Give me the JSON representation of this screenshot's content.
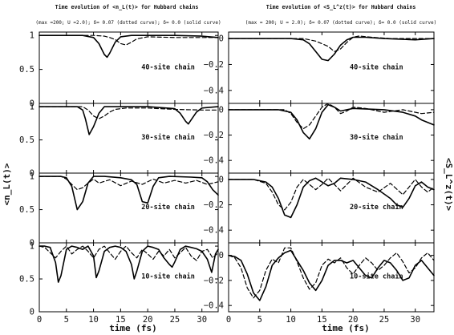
{
  "chart_data": [
    {
      "type": "line",
      "title": "Time evolution of <n_L(t)> for Hubbard chains",
      "subtitle": "(max =200; U =2.0); δ= 0.07 (dotted curve); δ= 0.0 (solid curve)",
      "ylabel": "<n_L(t)>",
      "xlabel": "time (fs)",
      "xlim": [
        0,
        33
      ],
      "x_ticks": [
        "0",
        "5",
        "10",
        "15",
        "20",
        "25",
        "30"
      ],
      "panels": [
        {
          "label": "40-site chain",
          "ylim": [
            0,
            1.05
          ],
          "y_ticks": [
            "0",
            "0.5",
            "1"
          ],
          "series": [
            {
              "style": "solid",
              "x": [
                0,
                8,
                10,
                11,
                12,
                12.5,
                13,
                14,
                15,
                17,
                20,
                25,
                30,
                33
              ],
              "y": [
                1,
                1,
                0.97,
                0.88,
                0.72,
                0.68,
                0.74,
                0.9,
                0.98,
                1,
                1,
                1,
                0.99,
                0.97
              ]
            },
            {
              "style": "dashed",
              "x": [
                0,
                10,
                12,
                13,
                14,
                15,
                16,
                17,
                18,
                20,
                25,
                30,
                33
              ],
              "y": [
                1,
                1,
                0.99,
                0.97,
                0.94,
                0.88,
                0.86,
                0.9,
                0.95,
                0.98,
                0.97,
                0.97,
                0.97
              ]
            }
          ]
        },
        {
          "label": "30-site chain",
          "ylim": [
            0,
            1.05
          ],
          "y_ticks": [
            "0",
            "0.5",
            "1"
          ],
          "series": [
            {
              "style": "solid",
              "x": [
                0,
                7,
                8,
                8.5,
                9.2,
                10,
                11,
                12,
                20,
                25,
                26,
                27,
                27.5,
                28,
                29,
                30,
                33
              ],
              "y": [
                1,
                1,
                0.95,
                0.82,
                0.58,
                0.7,
                0.9,
                1,
                1,
                0.97,
                0.9,
                0.78,
                0.74,
                0.8,
                0.92,
                0.98,
                1
              ]
            },
            {
              "style": "dashed",
              "x": [
                0,
                8,
                9,
                10,
                11,
                12,
                13,
                14,
                16,
                20,
                25,
                30,
                33
              ],
              "y": [
                1,
                1,
                0.95,
                0.86,
                0.82,
                0.86,
                0.92,
                0.96,
                0.98,
                0.98,
                0.96,
                0.95,
                0.95
              ]
            }
          ]
        },
        {
          "label": "20-site chain",
          "ylim": [
            0,
            1.05
          ],
          "y_ticks": [
            "0",
            "0.5",
            "1"
          ],
          "series": [
            {
              "style": "solid",
              "x": [
                0,
                4,
                5,
                6,
                7,
                8,
                9,
                10,
                12,
                15,
                17,
                18,
                19,
                20,
                21,
                22,
                24,
                28,
                30,
                31,
                32,
                33
              ],
              "y": [
                1,
                1,
                0.98,
                0.85,
                0.5,
                0.62,
                0.9,
                1,
                1,
                0.98,
                0.95,
                0.88,
                0.62,
                0.6,
                0.85,
                0.98,
                1,
                0.99,
                0.98,
                0.92,
                0.8,
                0.72
              ]
            },
            {
              "style": "dashed",
              "x": [
                0,
                4,
                5,
                6,
                7,
                8,
                9,
                10,
                11,
                13,
                15,
                17,
                19,
                21,
                23,
                25,
                27,
                29,
                31,
                33
              ],
              "y": [
                1,
                1,
                0.96,
                0.88,
                0.8,
                0.83,
                0.9,
                0.96,
                0.9,
                0.95,
                0.86,
                0.93,
                0.88,
                0.96,
                0.9,
                0.94,
                0.9,
                0.94,
                0.88,
                0.92
              ]
            }
          ]
        },
        {
          "label": "10-site chain",
          "ylim": [
            0,
            1.05
          ],
          "y_ticks": [
            "0",
            "0.5",
            "1"
          ],
          "series": [
            {
              "style": "solid",
              "x": [
                0,
                1,
                2,
                3,
                3.5,
                4,
                5,
                6,
                7,
                8,
                9,
                10,
                10.5,
                11,
                12,
                13,
                14,
                15,
                16,
                17,
                17.5,
                18,
                19,
                20,
                21,
                22,
                23,
                24,
                24.5,
                25,
                26,
                27,
                28,
                29,
                30,
                31,
                31.8,
                32.5,
                33
              ],
              "y": [
                1,
                1,
                0.98,
                0.75,
                0.45,
                0.55,
                0.95,
                1,
                0.98,
                0.95,
                1,
                0.85,
                0.52,
                0.62,
                0.92,
                0.98,
                1,
                0.98,
                0.92,
                0.72,
                0.5,
                0.62,
                0.92,
                1,
                0.98,
                0.95,
                0.82,
                0.72,
                0.68,
                0.76,
                0.95,
                1,
                0.98,
                0.96,
                0.92,
                0.8,
                0.6,
                0.88,
                0.95
              ]
            },
            {
              "style": "dashed",
              "x": [
                0,
                1,
                2,
                3,
                4,
                5,
                6,
                7,
                8,
                9,
                10,
                11,
                12,
                13,
                14,
                15,
                16,
                17,
                18,
                19,
                20,
                21,
                22,
                23,
                24,
                25,
                26,
                27,
                28,
                29,
                30,
                31,
                32,
                33
              ],
              "y": [
                1,
                0.98,
                0.9,
                0.82,
                0.92,
                1,
                0.88,
                0.95,
                1,
                0.92,
                0.82,
                0.95,
                1,
                0.9,
                0.8,
                0.92,
                1,
                0.9,
                0.82,
                0.95,
                0.88,
                0.8,
                0.92,
                0.85,
                0.95,
                0.82,
                0.9,
                0.98,
                0.85,
                0.78,
                0.92,
                0.95,
                0.82,
                0.9
              ]
            }
          ]
        }
      ]
    },
    {
      "type": "line",
      "title": "Time evolution of <S_L^z(t)> for Hubbard chains",
      "subtitle": "(max = 200; U = 2.0); δ= 0.07 (dotted curve); δ= 0.0 (solid curve)",
      "ylabel": "<S_L^z(t)>",
      "xlabel": "time (fs)",
      "xlim": [
        0,
        33
      ],
      "x_ticks": [
        "0",
        "5",
        "10",
        "15",
        "20",
        "25",
        "30"
      ],
      "panels": [
        {
          "label": "40-site chain",
          "ylim": [
            -0.5,
            0.05
          ],
          "y_ticks": [
            "0",
            "−0.2",
            "−0.4"
          ],
          "series": [
            {
              "style": "solid",
              "x": [
                0,
                10,
                12,
                13,
                14,
                15,
                16,
                17,
                18,
                19,
                20,
                22,
                25,
                30,
                33
              ],
              "y": [
                0,
                0,
                -0.01,
                -0.04,
                -0.1,
                -0.16,
                -0.17,
                -0.12,
                -0.05,
                -0.01,
                0.01,
                0.01,
                0,
                -0.01,
                0
              ]
            },
            {
              "style": "dashed",
              "x": [
                0,
                12,
                14,
                16,
                17,
                18,
                19,
                20,
                21,
                23,
                26,
                30,
                33
              ],
              "y": [
                0,
                0,
                -0.02,
                -0.06,
                -0.1,
                -0.08,
                -0.03,
                0.01,
                0.02,
                0.01,
                0,
                0,
                0
              ]
            }
          ]
        },
        {
          "label": "30-site chain",
          "ylim": [
            -0.5,
            0.05
          ],
          "y_ticks": [
            "0",
            "−0.2",
            "−0.4"
          ],
          "series": [
            {
              "style": "solid",
              "x": [
                0,
                8,
                10,
                11,
                12,
                13,
                14,
                15,
                16,
                17,
                18,
                20,
                25,
                28,
                30,
                31,
                32,
                33
              ],
              "y": [
                0,
                0,
                -0.02,
                -0.08,
                -0.18,
                -0.23,
                -0.15,
                -0.02,
                0.04,
                0.02,
                -0.01,
                0.01,
                0,
                -0.02,
                -0.05,
                -0.08,
                -0.1,
                -0.12
              ]
            },
            {
              "style": "dashed",
              "x": [
                0,
                9,
                10,
                11,
                12,
                13,
                14,
                15,
                16,
                17,
                18,
                19,
                20,
                22,
                25,
                28,
                31,
                33
              ],
              "y": [
                0,
                0,
                -0.03,
                -0.1,
                -0.15,
                -0.12,
                -0.05,
                0.02,
                0.05,
                0.02,
                -0.03,
                -0.01,
                0.02,
                0.01,
                -0.02,
                0,
                -0.03,
                -0.02
              ]
            }
          ]
        },
        {
          "label": "20-site chain",
          "ylim": [
            -0.5,
            0.05
          ],
          "y_ticks": [
            "0",
            "−0.2",
            "−0.4"
          ],
          "series": [
            {
              "style": "solid",
              "x": [
                0,
                4,
                6,
                7,
                8,
                9,
                10,
                11,
                12,
                13,
                14,
                15,
                16,
                17,
                18,
                20,
                22,
                24,
                26,
                27,
                28,
                29,
                30,
                31,
                32,
                33
              ],
              "y": [
                0,
                0,
                -0.02,
                -0.06,
                -0.15,
                -0.28,
                -0.3,
                -0.2,
                -0.06,
                -0.01,
                0.01,
                -0.02,
                -0.05,
                -0.03,
                0.01,
                0,
                -0.02,
                -0.08,
                -0.15,
                -0.2,
                -0.22,
                -0.15,
                -0.05,
                -0.02,
                -0.06,
                -0.08
              ]
            },
            {
              "style": "dashed",
              "x": [
                0,
                4,
                6,
                7,
                8,
                9,
                10,
                11,
                12,
                13,
                14,
                15,
                16,
                17,
                18,
                19,
                20,
                22,
                24,
                26,
                28,
                29,
                30,
                31,
                32,
                33
              ],
              "y": [
                0,
                0,
                -0.03,
                -0.1,
                -0.2,
                -0.24,
                -0.18,
                -0.06,
                0,
                -0.04,
                -0.08,
                -0.04,
                0.01,
                -0.04,
                -0.09,
                -0.04,
                0.01,
                -0.06,
                -0.1,
                -0.03,
                -0.12,
                -0.06,
                0,
                -0.06,
                -0.1,
                -0.06
              ]
            }
          ]
        },
        {
          "label": "10-site chain",
          "ylim": [
            -0.45,
            0.1
          ],
          "y_ticks": [
            "0",
            "−0.2",
            "−0.4"
          ],
          "series": [
            {
              "style": "solid",
              "x": [
                0,
                1,
                2,
                3,
                4,
                5,
                6,
                7,
                8,
                9,
                10,
                11,
                12,
                13,
                14,
                15,
                16,
                17,
                18,
                19,
                20,
                21,
                22,
                23,
                24,
                25,
                26,
                27,
                28,
                29,
                30,
                31,
                32,
                33
              ],
              "y": [
                0,
                -0.01,
                -0.04,
                -0.15,
                -0.3,
                -0.36,
                -0.25,
                -0.08,
                -0.02,
                0.02,
                0.04,
                -0.04,
                -0.12,
                -0.22,
                -0.28,
                -0.2,
                -0.08,
                -0.04,
                -0.04,
                -0.06,
                -0.04,
                -0.1,
                -0.16,
                -0.18,
                -0.1,
                -0.04,
                -0.06,
                -0.12,
                -0.2,
                -0.18,
                -0.08,
                -0.04,
                -0.1,
                -0.16
              ]
            },
            {
              "style": "dashed",
              "x": [
                0,
                1,
                2,
                3,
                4,
                5,
                6,
                7,
                8,
                9,
                10,
                11,
                12,
                13,
                14,
                15,
                16,
                17,
                18,
                19,
                20,
                21,
                22,
                23,
                24,
                25,
                26,
                27,
                28,
                29,
                30,
                31,
                32,
                33
              ],
              "y": [
                0,
                -0.02,
                -0.1,
                -0.26,
                -0.34,
                -0.28,
                -0.12,
                -0.03,
                -0.06,
                0.06,
                0.06,
                -0.05,
                -0.18,
                -0.27,
                -0.22,
                -0.08,
                -0.03,
                -0.06,
                -0.02,
                -0.1,
                -0.15,
                -0.08,
                -0.02,
                -0.06,
                -0.12,
                -0.08,
                -0.02,
                0.02,
                -0.05,
                -0.14,
                -0.1,
                -0.02,
                0.02,
                -0.04
              ]
            }
          ]
        }
      ]
    }
  ]
}
